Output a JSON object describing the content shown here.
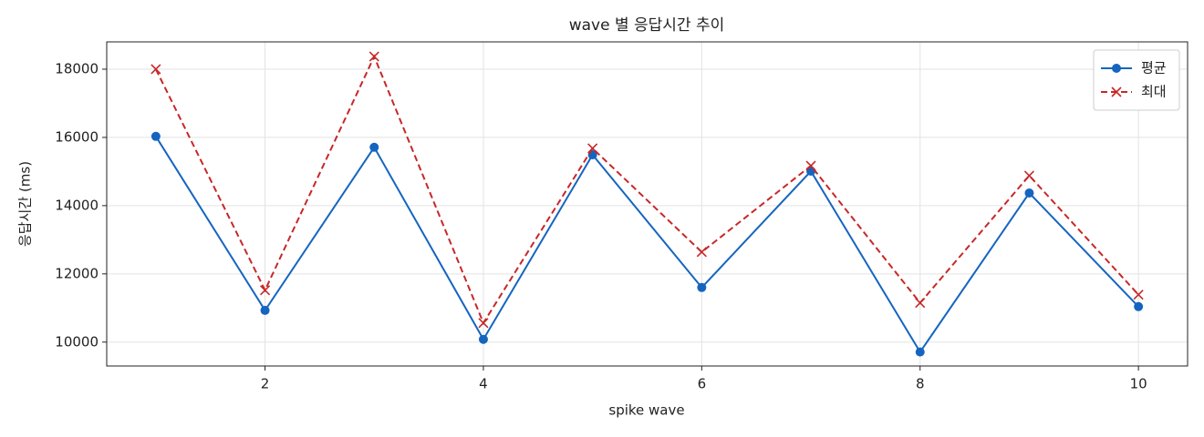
{
  "chart_data": {
    "type": "line",
    "title": "wave 별 응답시간 추이",
    "xlabel": "spike wave",
    "ylabel": "응답시간 (ms)",
    "x": [
      1,
      2,
      3,
      4,
      5,
      6,
      7,
      8,
      9,
      10
    ],
    "series": [
      {
        "name": "평균",
        "color": "#1565c0",
        "marker": "o",
        "linestyle": "solid",
        "values": [
          16030,
          10930,
          15710,
          10080,
          15490,
          11600,
          15010,
          9710,
          14370,
          11040
        ]
      },
      {
        "name": "최대",
        "color": "#c62828",
        "marker": "x",
        "linestyle": "dashed",
        "values": [
          18000,
          11520,
          18370,
          10560,
          15680,
          12640,
          15170,
          11150,
          14880,
          11390
        ]
      }
    ],
    "xlim": [
      0.55,
      10.45
    ],
    "ylim": [
      9300,
      18800
    ],
    "xticks": [
      2,
      4,
      6,
      8,
      10
    ],
    "yticks": [
      10000,
      12000,
      14000,
      16000,
      18000
    ],
    "grid": true,
    "legend": "upper right"
  }
}
